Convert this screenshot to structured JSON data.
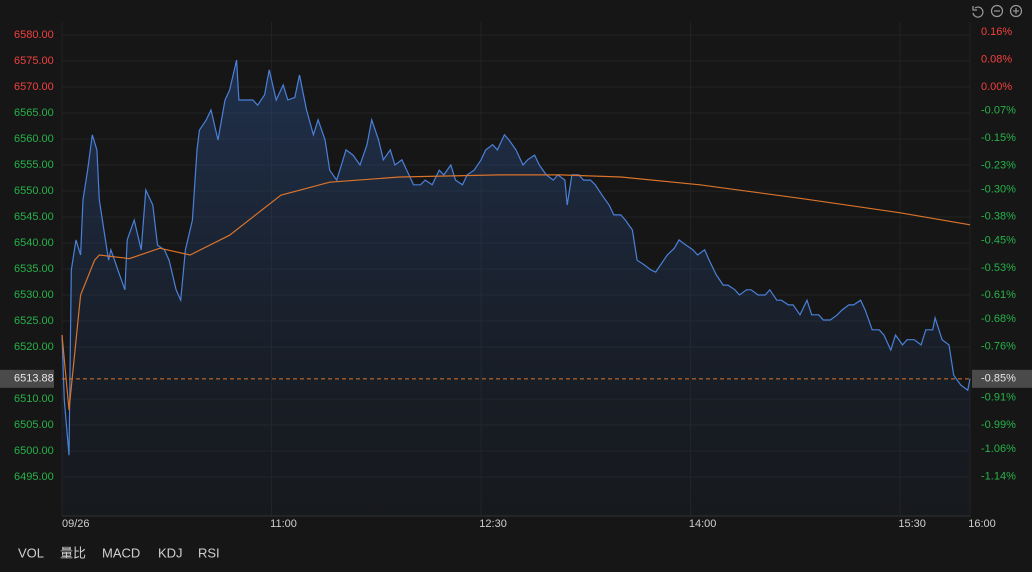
{
  "chart_data": {
    "type": "line",
    "xlim": [
      0,
      390
    ],
    "ylim": [
      6487.5,
      6582.5
    ],
    "y2lim": [
      -1.256,
      0.19
    ],
    "grid": true,
    "up_color": "#f0413f",
    "down_color": "#27b24a",
    "xticks": [
      {
        "value": 0,
        "label": "09/26"
      },
      {
        "value": 90,
        "label": "11:00"
      },
      {
        "value": 180,
        "label": "12:30"
      },
      {
        "value": 270,
        "label": "14:00"
      },
      {
        "value": 360,
        "label": "15:30"
      },
      {
        "value": 390,
        "label": "16:00"
      }
    ],
    "yticks": [
      {
        "value": 6580,
        "label": "6580.00"
      },
      {
        "value": 6575,
        "label": "6575.00"
      },
      {
        "value": 6570,
        "label": "6570.00"
      },
      {
        "value": 6565,
        "label": "6565.00"
      },
      {
        "value": 6560,
        "label": "6560.00"
      },
      {
        "value": 6555,
        "label": "6555.00"
      },
      {
        "value": 6550,
        "label": "6550.00"
      },
      {
        "value": 6545,
        "label": "6545.00"
      },
      {
        "value": 6540,
        "label": "6540.00"
      },
      {
        "value": 6535,
        "label": "6535.00"
      },
      {
        "value": 6530,
        "label": "6530.00"
      },
      {
        "value": 6525,
        "label": "6525.00"
      },
      {
        "value": 6520,
        "label": "6520.00"
      },
      {
        "value": 6510,
        "label": "6510.00"
      },
      {
        "value": 6505,
        "label": "6505.00"
      },
      {
        "value": 6500,
        "label": "6500.00"
      },
      {
        "value": 6495,
        "label": "6495.00"
      }
    ],
    "y2ticks": [
      {
        "value": 0.16,
        "label": "0.16%"
      },
      {
        "value": 0.08,
        "label": "0.08%"
      },
      {
        "value": 0,
        "label": "0.00%"
      },
      {
        "value": -0.07,
        "label": "-0.07%"
      },
      {
        "value": -0.15,
        "label": "-0.15%"
      },
      {
        "value": -0.23,
        "label": "-0.23%"
      },
      {
        "value": -0.3,
        "label": "-0.30%"
      },
      {
        "value": -0.38,
        "label": "-0.38%"
      },
      {
        "value": -0.45,
        "label": "-0.45%"
      },
      {
        "value": -0.53,
        "label": "-0.53%"
      },
      {
        "value": -0.61,
        "label": "-0.61%"
      },
      {
        "value": -0.68,
        "label": "-0.68%"
      },
      {
        "value": -0.76,
        "label": "-0.76%"
      },
      {
        "value": -0.91,
        "label": "-0.91%"
      },
      {
        "value": -0.99,
        "label": "-0.99%"
      },
      {
        "value": -1.06,
        "label": "-1.06%"
      },
      {
        "value": -1.14,
        "label": "-1.14%"
      }
    ],
    "last_price": 6513.88,
    "last_change": {
      "value": -0.85,
      "label": "-0.85%"
    },
    "series": [
      {
        "color": "#4a80d8",
        "fill": true,
        "x": [
          0,
          1,
          3,
          4,
          6,
          8,
          9,
          11,
          13,
          15,
          16,
          18,
          20,
          21,
          24,
          27,
          28,
          31,
          34,
          36,
          39,
          41,
          44,
          46,
          49,
          51,
          53,
          56,
          58,
          59,
          62,
          64,
          67,
          70,
          72,
          75,
          76,
          79,
          82,
          84,
          87,
          89,
          92,
          95,
          97,
          100,
          102,
          105,
          108,
          110,
          113,
          115,
          118,
          120,
          122,
          125,
          128,
          131,
          133,
          136,
          138,
          141,
          143,
          146,
          149,
          151,
          154,
          156,
          159,
          162,
          164,
          167,
          169,
          172,
          174,
          177,
          180,
          182,
          185,
          187,
          190,
          192,
          195,
          198,
          200,
          203,
          205,
          208,
          211,
          213,
          216,
          217,
          219,
          222,
          224,
          227,
          229,
          232,
          235,
          237,
          240,
          242,
          245,
          247,
          250,
          253,
          255,
          258,
          260,
          263,
          265,
          268,
          271,
          273,
          276,
          278,
          281,
          284,
          286,
          289,
          291,
          294,
          296,
          299,
          302,
          304,
          307,
          309,
          312,
          314,
          317,
          320,
          322,
          325,
          327,
          330,
          333,
          335,
          338,
          340,
          343,
          345,
          348,
          351,
          353,
          356,
          358,
          361,
          363,
          366,
          369,
          371,
          374,
          375,
          378,
          381,
          383,
          386,
          389,
          390
        ],
        "values": [
          6522.3,
          6509.8,
          6499.2,
          6534.8,
          6540.6,
          6537.7,
          6548.3,
          6554.0,
          6560.8,
          6557.9,
          6548.3,
          6542.5,
          6536.7,
          6538.7,
          6534.8,
          6531.0,
          6540.6,
          6544.4,
          6538.7,
          6550.2,
          6547.3,
          6539.6,
          6538.7,
          6536.7,
          6531.0,
          6529.0,
          6538.7,
          6544.4,
          6557.9,
          6561.7,
          6563.7,
          6565.6,
          6559.8,
          6567.5,
          6569.4,
          6575.2,
          6567.5,
          6567.5,
          6567.5,
          6566.5,
          6568.5,
          6573.3,
          6567.5,
          6570.4,
          6567.5,
          6568.0,
          6572.3,
          6565.6,
          6560.8,
          6563.7,
          6559.8,
          6554.0,
          6552.1,
          6555.0,
          6557.9,
          6556.9,
          6555.0,
          6558.9,
          6563.7,
          6559.8,
          6556.0,
          6557.9,
          6555.0,
          6556.0,
          6553.1,
          6551.2,
          6551.2,
          6552.1,
          6551.2,
          6554.0,
          6553.1,
          6555.0,
          6552.1,
          6551.2,
          6553.1,
          6554.0,
          6556.0,
          6557.9,
          6558.9,
          6557.9,
          6560.8,
          6559.8,
          6557.9,
          6555.0,
          6556.0,
          6556.9,
          6555.0,
          6553.1,
          6552.1,
          6553.1,
          6552.1,
          6547.3,
          6553.1,
          6553.1,
          6552.1,
          6552.1,
          6551.2,
          6549.2,
          6547.3,
          6545.4,
          6545.4,
          6544.4,
          6542.5,
          6536.7,
          6535.8,
          6534.8,
          6534.4,
          6536.4,
          6537.7,
          6539.0,
          6540.6,
          6539.6,
          6538.7,
          6537.7,
          6538.7,
          6536.7,
          6533.9,
          6531.9,
          6531.9,
          6531.0,
          6530.0,
          6531.0,
          6531.0,
          6530.0,
          6530.0,
          6531.0,
          6529.0,
          6529.0,
          6528.1,
          6528.1,
          6526.2,
          6529.0,
          6526.2,
          6526.2,
          6525.2,
          6525.2,
          6526.2,
          6527.1,
          6528.1,
          6528.1,
          6529.0,
          6527.1,
          6523.3,
          6523.3,
          6522.3,
          6519.4,
          6522.3,
          6520.4,
          6521.4,
          6521.4,
          6520.4,
          6523.3,
          6523.3,
          6525.6,
          6521.4,
          6520.4,
          6514.6,
          6512.7,
          6511.7,
          6513.88
        ]
      },
      {
        "color": "#d9732b",
        "x": [
          0,
          3,
          8,
          14,
          16,
          29,
          42,
          55,
          72,
          94,
          115,
          145,
          188,
          214,
          240,
          274,
          317,
          360,
          390
        ],
        "values": [
          6522.3,
          6507.9,
          6530.0,
          6536.7,
          6537.7,
          6537.0,
          6539.0,
          6537.7,
          6541.5,
          6549.2,
          6551.7,
          6552.7,
          6553.1,
          6553.1,
          6552.7,
          6551.2,
          6548.6,
          6545.8,
          6543.5
        ]
      }
    ]
  },
  "tabs": [
    "VOL",
    "量比",
    "MACD",
    "KDJ",
    "RSI"
  ]
}
